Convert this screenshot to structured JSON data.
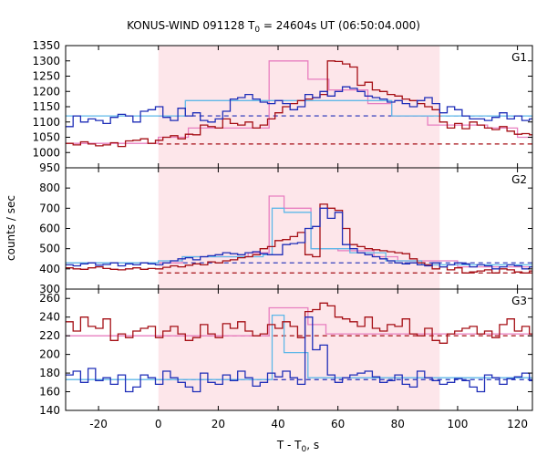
{
  "chart_data": {
    "type": "line",
    "title": {
      "prefix": "KONUS-WIND 091128 T",
      "sub": "0",
      "suffix": " = 24604s UT (06:50:04.000)"
    },
    "xlabel": {
      "prefix": "T - T",
      "sub": "0",
      "suffix": ", s"
    },
    "ylabel": "counts / sec",
    "xlim": [
      -31,
      125
    ],
    "x_ticks": [
      -20,
      0,
      20,
      40,
      60,
      80,
      100,
      120
    ],
    "shaded_interval": [
      0,
      94
    ],
    "colors": {
      "red_step": "#a50f15",
      "pink_model": "#e87fc0",
      "blue_step": "#1f2eb8",
      "cyan_model": "#5fb8e8",
      "shade": "#fde6ea"
    },
    "panels": [
      {
        "label": "G1",
        "ylim": [
          950,
          1350
        ],
        "y_ticks": [
          950,
          1000,
          1050,
          1100,
          1150,
          1200,
          1250,
          1300,
          1350
        ],
        "red_bg": 1028,
        "blue_bg": 1120,
        "red_step": {
          "x0": -31,
          "dx": 2.5,
          "values": [
            1030,
            1025,
            1035,
            1028,
            1022,
            1025,
            1032,
            1020,
            1038,
            1040,
            1045,
            1030,
            1040,
            1050,
            1055,
            1045,
            1060,
            1058,
            1090,
            1085,
            1080,
            1110,
            1095,
            1090,
            1100,
            1080,
            1090,
            1110,
            1130,
            1150,
            1160,
            1170,
            1175,
            1180,
            1190,
            1300,
            1298,
            1290,
            1280,
            1220,
            1230,
            1205,
            1200,
            1190,
            1185,
            1175,
            1170,
            1160,
            1150,
            1140,
            1100,
            1080,
            1095,
            1078,
            1100,
            1090,
            1080,
            1075,
            1085,
            1070,
            1060,
            1062,
            1058,
            1050,
            1055,
            1065,
            1060,
            1050,
            1040,
            1020
          ]
        },
        "blue_step": {
          "x0": -31,
          "dx": 2.5,
          "values": [
            1085,
            1120,
            1100,
            1110,
            1105,
            1095,
            1115,
            1125,
            1120,
            1100,
            1135,
            1140,
            1150,
            1115,
            1105,
            1145,
            1120,
            1130,
            1105,
            1100,
            1110,
            1135,
            1175,
            1180,
            1190,
            1175,
            1165,
            1160,
            1170,
            1160,
            1140,
            1150,
            1190,
            1180,
            1200,
            1185,
            1200,
            1215,
            1210,
            1200,
            1185,
            1180,
            1175,
            1165,
            1170,
            1160,
            1150,
            1170,
            1180,
            1160,
            1130,
            1150,
            1140,
            1120,
            1110,
            1110,
            1105,
            1115,
            1130,
            1110,
            1120,
            1105,
            1110,
            1100,
            1120,
            1095,
            1110,
            1120,
            1115,
            1110
          ]
        },
        "pink_model": [
          [
            -31,
            1030
          ],
          [
            0,
            1030
          ],
          [
            0,
            1050
          ],
          [
            10,
            1050
          ],
          [
            10,
            1080
          ],
          [
            30,
            1080
          ],
          [
            30,
            1080
          ],
          [
            37,
            1080
          ],
          [
            37,
            1300
          ],
          [
            50,
            1300
          ],
          [
            50,
            1240
          ],
          [
            57,
            1240
          ],
          [
            57,
            1205
          ],
          [
            70,
            1205
          ],
          [
            70,
            1160
          ],
          [
            78,
            1160
          ],
          [
            78,
            1120
          ],
          [
            90,
            1120
          ],
          [
            90,
            1090
          ],
          [
            110,
            1090
          ],
          [
            110,
            1080
          ],
          [
            120,
            1080
          ],
          [
            120,
            1050
          ],
          [
            125,
            1050
          ]
        ],
        "cyan_model": [
          [
            -31,
            1120
          ],
          [
            0,
            1120
          ],
          [
            0,
            1120
          ],
          [
            9,
            1120
          ],
          [
            9,
            1170
          ],
          [
            78,
            1170
          ],
          [
            78,
            1120
          ],
          [
            125,
            1120
          ]
        ]
      },
      {
        "label": "G2",
        "ylim": [
          300,
          900
        ],
        "y_ticks": [
          300,
          400,
          500,
          600,
          700,
          800
        ],
        "red_bg": 380,
        "blue_bg": 430,
        "red_step": {
          "x0": -31,
          "dx": 2.5,
          "values": [
            405,
            400,
            398,
            405,
            410,
            402,
            398,
            395,
            400,
            405,
            398,
            402,
            400,
            408,
            415,
            410,
            418,
            425,
            420,
            435,
            430,
            440,
            445,
            455,
            460,
            470,
            500,
            510,
            540,
            545,
            560,
            580,
            470,
            460,
            720,
            700,
            690,
            600,
            520,
            510,
            500,
            495,
            490,
            485,
            480,
            475,
            450,
            430,
            420,
            400,
            410,
            395,
            405,
            380,
            385,
            390,
            395,
            380,
            400,
            395,
            385,
            380,
            390,
            395,
            385,
            375,
            390,
            380,
            385,
            380
          ]
        },
        "blue_step": {
          "x0": -31,
          "dx": 2.5,
          "values": [
            420,
            415,
            425,
            430,
            418,
            422,
            430,
            415,
            425,
            420,
            430,
            425,
            420,
            430,
            440,
            450,
            455,
            445,
            460,
            465,
            470,
            480,
            475,
            470,
            480,
            485,
            475,
            470,
            470,
            520,
            525,
            530,
            600,
            610,
            700,
            650,
            680,
            520,
            500,
            480,
            470,
            460,
            450,
            440,
            430,
            425,
            430,
            420,
            415,
            430,
            410,
            420,
            430,
            425,
            410,
            420,
            415,
            400,
            410,
            420,
            415,
            400,
            410,
            405,
            415,
            400,
            410,
            420,
            395,
            400
          ]
        },
        "pink_model": [
          [
            -31,
            430
          ],
          [
            0,
            430
          ],
          [
            0,
            430
          ],
          [
            8,
            430
          ],
          [
            8,
            460
          ],
          [
            30,
            460
          ],
          [
            30,
            480
          ],
          [
            37,
            480
          ],
          [
            37,
            760
          ],
          [
            42,
            760
          ],
          [
            42,
            700
          ],
          [
            51,
            700
          ],
          [
            51,
            500
          ],
          [
            60,
            500
          ],
          [
            60,
            490
          ],
          [
            72,
            490
          ],
          [
            72,
            460
          ],
          [
            80,
            460
          ],
          [
            80,
            440
          ],
          [
            100,
            440
          ],
          [
            100,
            410
          ],
          [
            125,
            410
          ]
        ],
        "cyan_model": [
          [
            -31,
            430
          ],
          [
            0,
            430
          ],
          [
            0,
            440
          ],
          [
            8,
            440
          ],
          [
            8,
            460
          ],
          [
            35,
            460
          ],
          [
            35,
            470
          ],
          [
            38,
            470
          ],
          [
            38,
            700
          ],
          [
            42,
            700
          ],
          [
            42,
            680
          ],
          [
            51,
            680
          ],
          [
            51,
            500
          ],
          [
            64,
            500
          ],
          [
            64,
            480
          ],
          [
            76,
            480
          ],
          [
            76,
            440
          ],
          [
            88,
            440
          ],
          [
            88,
            420
          ],
          [
            125,
            420
          ]
        ]
      },
      {
        "label": "G3",
        "ylim": [
          140,
          270
        ],
        "y_ticks": [
          140,
          160,
          180,
          200,
          220,
          240,
          260
        ],
        "red_bg": 220,
        "blue_bg": 173,
        "red_step": {
          "x0": -31,
          "dx": 2.5,
          "values": [
            235,
            225,
            240,
            230,
            228,
            238,
            215,
            222,
            218,
            225,
            228,
            230,
            218,
            225,
            230,
            222,
            215,
            218,
            232,
            222,
            218,
            233,
            228,
            235,
            225,
            220,
            222,
            232,
            228,
            235,
            230,
            218,
            246,
            248,
            255,
            252,
            240,
            238,
            235,
            230,
            240,
            228,
            225,
            232,
            230,
            238,
            222,
            220,
            228,
            215,
            212,
            222,
            225,
            228,
            230,
            222,
            225,
            218,
            232,
            238,
            225,
            230,
            222,
            225,
            218,
            212,
            218,
            230,
            222,
            220
          ]
        },
        "blue_step": {
          "x0": -31,
          "dx": 2.5,
          "values": [
            178,
            182,
            170,
            185,
            172,
            175,
            168,
            178,
            160,
            165,
            178,
            175,
            168,
            182,
            175,
            170,
            165,
            160,
            180,
            170,
            168,
            178,
            172,
            182,
            175,
            166,
            170,
            180,
            176,
            182,
            175,
            168,
            240,
            205,
            210,
            178,
            170,
            175,
            178,
            180,
            182,
            176,
            170,
            172,
            178,
            168,
            165,
            182,
            175,
            172,
            168,
            170,
            174,
            172,
            165,
            160,
            178,
            175,
            168,
            174,
            176,
            180,
            172,
            168,
            175,
            178,
            180,
            170,
            165,
            162
          ]
        },
        "pink_model": [
          [
            -31,
            220
          ],
          [
            0,
            220
          ],
          [
            0,
            220
          ],
          [
            37,
            220
          ],
          [
            37,
            250
          ],
          [
            50,
            250
          ],
          [
            50,
            232
          ],
          [
            56,
            232
          ],
          [
            56,
            222
          ],
          [
            125,
            222
          ]
        ],
        "cyan_model": [
          [
            -31,
            173
          ],
          [
            0,
            173
          ],
          [
            0,
            173
          ],
          [
            38,
            173
          ],
          [
            38,
            242
          ],
          [
            42,
            242
          ],
          [
            42,
            202
          ],
          [
            50,
            202
          ],
          [
            50,
            175
          ],
          [
            125,
            175
          ]
        ]
      }
    ]
  }
}
